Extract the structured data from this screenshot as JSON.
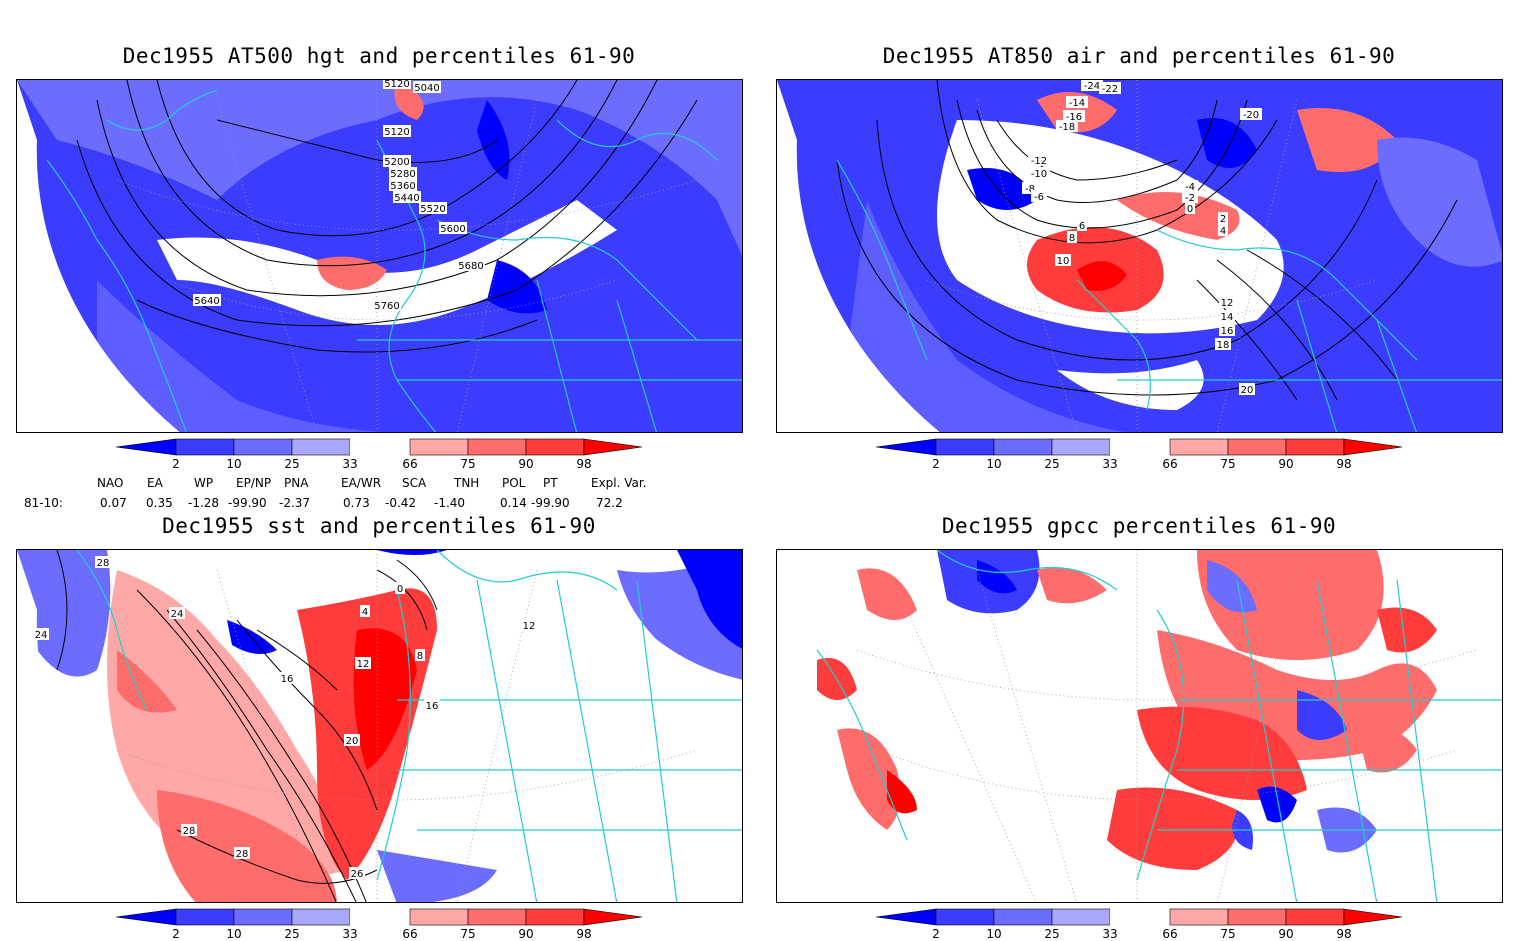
{
  "panels": [
    {
      "id": "p1",
      "title": "Dec1955 AT500 hgt and percentiles 61-90",
      "contour_labels": [
        "5120",
        "5040",
        "5120",
        "5200",
        "5280",
        "5360",
        "5440",
        "5520",
        "5600",
        "5680",
        "5760",
        "5640"
      ]
    },
    {
      "id": "p2",
      "title": "Dec1955 AT850 air and percentiles 61-90",
      "contour_labels": [
        "-24",
        "-22",
        "-20",
        "-18",
        "-16",
        "-14",
        "-12",
        "-10",
        "-8",
        "-6",
        "-4",
        "-2",
        "0",
        "2",
        "4",
        "6",
        "8",
        "10",
        "12",
        "14",
        "16",
        "18",
        "20"
      ]
    },
    {
      "id": "p3",
      "title": "Dec1955 sst and percentiles 61-90",
      "contour_labels": [
        "28",
        "24",
        "24",
        "0",
        "4",
        "8",
        "12",
        "16",
        "20",
        "28",
        "28",
        "26",
        "12",
        "16"
      ]
    },
    {
      "id": "p4",
      "title": "Dec1955 gpcc percentiles 61-90",
      "contour_labels": []
    }
  ],
  "colorbar": {
    "ticks": [
      "2",
      "10",
      "25",
      "33",
      "66",
      "75",
      "90",
      "98"
    ],
    "colors": [
      "#0000ff",
      "#3c3cff",
      "#6c6cff",
      "#a8a8ff",
      "#ffffff",
      "#ffa8a8",
      "#ff6c6c",
      "#ff3c3c",
      "#ff0000"
    ]
  },
  "indices": {
    "headers": [
      "NAO",
      "EA",
      "WP",
      "EP/NP",
      "PNA",
      "EA/WR",
      "SCA",
      "TNH",
      "POL",
      "PT",
      "Expl. Var."
    ],
    "row_label": "81-10:",
    "values": [
      "0.07",
      "0.35",
      "-1.28",
      "-99.90",
      "-2.37",
      "0.73",
      "-0.42",
      "-1.40",
      "0.14",
      "-99.90",
      "72.2"
    ]
  }
}
